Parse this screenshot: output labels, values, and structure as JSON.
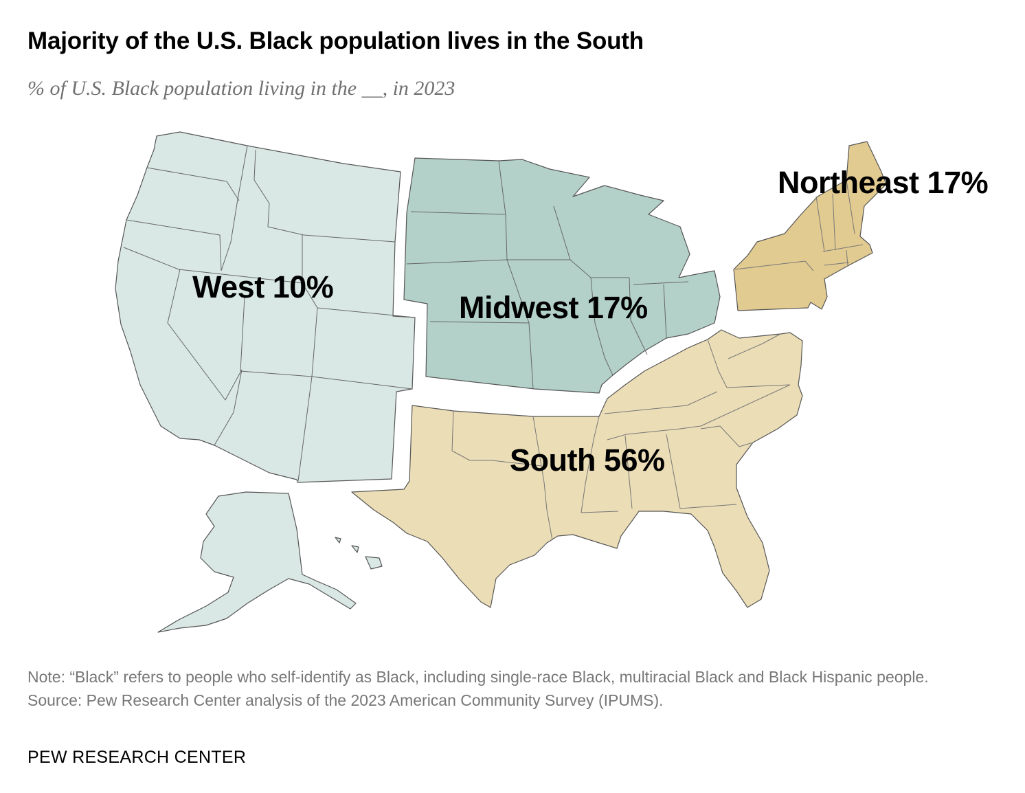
{
  "title": "Majority of the U.S. Black population lives in the South",
  "subtitle": "% of U.S. Black population living in the __, in 2023",
  "regions": [
    {
      "id": "west",
      "name": "West",
      "label": "West 10%",
      "percent": 10,
      "color": "#d9e8e4"
    },
    {
      "id": "midwest",
      "name": "Midwest",
      "label": "Midwest 17%",
      "percent": 17,
      "color": "#b3d1c8"
    },
    {
      "id": "northeast",
      "name": "Northeast",
      "label": "Northeast 17%",
      "percent": 17,
      "color": "#e2cb91"
    },
    {
      "id": "south",
      "name": "South",
      "label": "South 56%",
      "percent": 56,
      "color": "#ebddb6"
    }
  ],
  "note": "Note: “Black” refers to people who self-identify as Black, including single-race Black, multiracial Black and Black Hispanic people.",
  "source": "Source: Pew Research Center analysis of the 2023 American Community Survey (IPUMS).",
  "logo": "PEW RESEARCH CENTER"
}
